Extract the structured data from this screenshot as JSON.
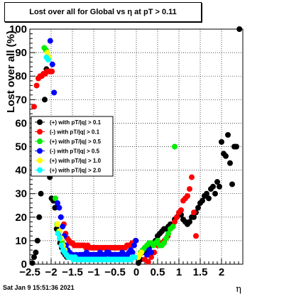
{
  "chart_data": {
    "type": "scatter",
    "title": "Lost over all for Global vs   η at pT > 0.11",
    "xlabel": "η",
    "ylabel": "Lost over all (%)",
    "xlim": [
      -2.5,
      2.5
    ],
    "ylim": [
      0,
      100
    ],
    "xticks": [
      -2.5,
      -2,
      -1.5,
      -1,
      -0.5,
      0,
      0.5,
      1,
      1.5,
      2
    ],
    "xtick_labels": [
      "−2.5",
      "−2",
      "−1.5",
      "−1",
      "−0.5",
      "0",
      "0.5",
      "1",
      "1.5",
      "2"
    ],
    "yticks": [
      0,
      10,
      20,
      30,
      40,
      50,
      60,
      70,
      80,
      90,
      100
    ],
    "grid": true,
    "legend_position": "middle-left",
    "footer": "Sat Jan  9 15:51:36 2021",
    "series": [
      {
        "name": "(+) with pT/|q| > 0.1",
        "color": "#000000",
        "points": [
          [
            -2.44,
            0.5
          ],
          [
            -2.4,
            3
          ],
          [
            -2.36,
            5
          ],
          [
            -2.32,
            10
          ],
          [
            -2.28,
            20
          ],
          [
            -2.24,
            30
          ],
          [
            -2.15,
            70
          ],
          [
            -2.11,
            83
          ],
          [
            -2.07,
            82
          ],
          [
            -2.03,
            37
          ],
          [
            -1.99,
            28
          ],
          [
            -1.95,
            27
          ],
          [
            -1.91,
            24
          ],
          [
            -1.87,
            15
          ],
          [
            -1.83,
            13
          ],
          [
            -1.79,
            9
          ],
          [
            -1.75,
            7
          ],
          [
            -1.71,
            5
          ],
          [
            -1.67,
            4
          ],
          [
            -1.63,
            3
          ],
          [
            0.05,
            0.5
          ],
          [
            0.1,
            2
          ],
          [
            0.15,
            5
          ],
          [
            0.2,
            7
          ],
          [
            0.25,
            6
          ],
          [
            0.3,
            7
          ],
          [
            0.35,
            8
          ],
          [
            0.4,
            9
          ],
          [
            0.45,
            10
          ],
          [
            0.5,
            12
          ],
          [
            0.55,
            13
          ],
          [
            0.6,
            14
          ],
          [
            0.65,
            15
          ],
          [
            0.7,
            15
          ],
          [
            0.75,
            16
          ],
          [
            0.8,
            17
          ],
          [
            0.85,
            17
          ],
          [
            0.9,
            19
          ],
          [
            0.95,
            20
          ],
          [
            1.0,
            21
          ],
          [
            1.05,
            21
          ],
          [
            1.1,
            19
          ],
          [
            1.15,
            18
          ],
          [
            1.2,
            17
          ],
          [
            1.25,
            18
          ],
          [
            1.3,
            20
          ],
          [
            1.35,
            20
          ],
          [
            1.4,
            22
          ],
          [
            1.45,
            24
          ],
          [
            1.5,
            26
          ],
          [
            1.55,
            27
          ],
          [
            1.6,
            29
          ],
          [
            1.65,
            30
          ],
          [
            1.7,
            28
          ],
          [
            1.75,
            32
          ],
          [
            1.8,
            33
          ],
          [
            1.85,
            30
          ],
          [
            1.9,
            35
          ],
          [
            1.95,
            33
          ],
          [
            2.0,
            52
          ],
          [
            2.05,
            47
          ],
          [
            2.1,
            46
          ],
          [
            2.15,
            55
          ],
          [
            2.2,
            43
          ],
          [
            2.25,
            34
          ],
          [
            2.3,
            50
          ],
          [
            2.35,
            50
          ],
          [
            2.42,
            100
          ]
        ]
      },
      {
        "name": "(-) with pT/|q| > 0.1",
        "color": "#ff0000",
        "points": [
          [
            -2.4,
            67
          ],
          [
            -2.34,
            76
          ],
          [
            -2.3,
            79
          ],
          [
            -2.26,
            80
          ],
          [
            -2.22,
            80
          ],
          [
            -2.18,
            81
          ],
          [
            -2.14,
            81
          ],
          [
            -2.1,
            82
          ],
          [
            -2.06,
            82
          ],
          [
            -2.02,
            82
          ],
          [
            -1.98,
            82
          ],
          [
            -1.7,
            17
          ],
          [
            -1.66,
            13
          ],
          [
            -1.62,
            11
          ],
          [
            -1.58,
            10
          ],
          [
            -1.54,
            9
          ],
          [
            -1.5,
            9
          ],
          [
            -1.46,
            8
          ],
          [
            -1.42,
            8
          ],
          [
            -1.38,
            8
          ],
          [
            -1.34,
            8
          ],
          [
            -1.3,
            8
          ],
          [
            -1.26,
            8
          ],
          [
            -1.22,
            8
          ],
          [
            -1.18,
            7
          ],
          [
            -1.14,
            8
          ],
          [
            -1.1,
            7
          ],
          [
            -1.06,
            7
          ],
          [
            -1.02,
            7
          ],
          [
            -0.98,
            7
          ],
          [
            -0.94,
            7
          ],
          [
            -0.9,
            7
          ],
          [
            -0.86,
            7
          ],
          [
            -0.82,
            7
          ],
          [
            -0.78,
            7
          ],
          [
            -0.74,
            7
          ],
          [
            -0.7,
            7
          ],
          [
            -0.66,
            7
          ],
          [
            -0.62,
            7
          ],
          [
            -0.58,
            7
          ],
          [
            -0.54,
            7
          ],
          [
            -0.5,
            7
          ],
          [
            -0.46,
            7
          ],
          [
            -0.42,
            7
          ],
          [
            -0.38,
            7
          ],
          [
            -0.34,
            7
          ],
          [
            -0.3,
            7
          ],
          [
            -0.26,
            7
          ],
          [
            -0.22,
            8
          ],
          [
            -0.18,
            8
          ],
          [
            -0.14,
            8
          ],
          [
            -0.1,
            9
          ],
          [
            -0.06,
            9
          ],
          [
            -0.02,
            10
          ],
          [
            0.2,
            2
          ],
          [
            0.28,
            1
          ],
          [
            0.35,
            3
          ],
          [
            0.42,
            5
          ],
          [
            0.5,
            8
          ],
          [
            0.58,
            9
          ],
          [
            0.66,
            10
          ],
          [
            0.74,
            12
          ],
          [
            0.8,
            15
          ],
          [
            0.86,
            16
          ],
          [
            0.9,
            18
          ],
          [
            0.95,
            20
          ],
          [
            1.0,
            22
          ],
          [
            1.05,
            23
          ],
          [
            1.1,
            27
          ],
          [
            1.15,
            28
          ],
          [
            1.2,
            29
          ],
          [
            1.25,
            32
          ],
          [
            1.3,
            37
          ],
          [
            1.35,
            22
          ],
          [
            1.4,
            12
          ]
        ]
      },
      {
        "name": "(+) with pT/|q| > 0.5",
        "color": "#00ee00",
        "points": [
          [
            -2.16,
            92
          ],
          [
            -2.12,
            91
          ],
          [
            -1.9,
            28
          ],
          [
            -1.86,
            17
          ],
          [
            -1.82,
            14
          ],
          [
            -1.78,
            11
          ],
          [
            -1.74,
            9
          ],
          [
            -1.7,
            7
          ],
          [
            -1.66,
            5
          ],
          [
            -1.62,
            4
          ],
          [
            -1.58,
            4
          ],
          [
            -1.54,
            3
          ],
          [
            -1.5,
            3
          ],
          [
            -1.46,
            3
          ],
          [
            -1.42,
            3
          ],
          [
            0.05,
            3
          ],
          [
            0.1,
            5
          ],
          [
            0.15,
            6
          ],
          [
            0.2,
            7
          ],
          [
            0.25,
            8
          ],
          [
            0.3,
            9
          ],
          [
            0.35,
            9
          ],
          [
            0.4,
            8
          ],
          [
            0.45,
            9
          ],
          [
            0.5,
            10
          ],
          [
            0.55,
            8
          ],
          [
            0.6,
            8
          ],
          [
            0.65,
            9
          ],
          [
            0.7,
            11
          ],
          [
            0.75,
            13
          ],
          [
            0.8,
            15
          ],
          [
            0.86,
            16
          ],
          [
            0.9,
            50
          ]
        ]
      },
      {
        "name": "(-) with pT/|q| > 0.5",
        "color": "#0000ff",
        "points": [
          [
            -2.02,
            95
          ],
          [
            -1.97,
            85
          ],
          [
            -1.93,
            73
          ],
          [
            -1.85,
            26
          ],
          [
            -1.81,
            24
          ],
          [
            -1.77,
            20
          ],
          [
            -1.73,
            16
          ],
          [
            -1.69,
            12
          ],
          [
            -1.65,
            8
          ],
          [
            -1.61,
            6
          ],
          [
            -1.57,
            5
          ],
          [
            -1.53,
            4
          ],
          [
            -1.49,
            4
          ],
          [
            -1.45,
            3
          ],
          [
            -1.41,
            4
          ],
          [
            -1.37,
            3
          ],
          [
            -1.33,
            4
          ],
          [
            -1.29,
            4
          ],
          [
            -1.25,
            4
          ],
          [
            -1.21,
            4
          ],
          [
            -1.17,
            5
          ],
          [
            -1.13,
            4
          ],
          [
            -1.09,
            4
          ],
          [
            -1.05,
            4
          ],
          [
            -1.01,
            4
          ],
          [
            -0.97,
            4
          ],
          [
            -0.93,
            4
          ],
          [
            -0.89,
            4
          ],
          [
            -0.85,
            5
          ],
          [
            -0.81,
            4
          ],
          [
            -0.77,
            4
          ],
          [
            -0.73,
            4
          ],
          [
            -0.69,
            5
          ],
          [
            -0.65,
            5
          ],
          [
            -0.61,
            4
          ],
          [
            -0.57,
            4
          ],
          [
            -0.53,
            4
          ],
          [
            -0.49,
            4
          ],
          [
            -0.45,
            4
          ],
          [
            -0.41,
            4
          ],
          [
            -0.37,
            4
          ],
          [
            -0.33,
            5
          ],
          [
            -0.29,
            4
          ],
          [
            -0.25,
            4
          ],
          [
            -0.21,
            4
          ],
          [
            -0.17,
            5
          ],
          [
            -0.13,
            6
          ],
          [
            -0.09,
            5
          ],
          [
            -0.05,
            8
          ],
          [
            -0.01,
            10
          ],
          [
            0.25,
            4
          ],
          [
            0.3,
            6
          ],
          [
            0.35,
            5
          ]
        ]
      },
      {
        "name": "(+) with pT/|q| > 1.0",
        "color": "#ffff00",
        "points": [
          [
            -2.09,
            90
          ],
          [
            -2.05,
            88
          ],
          [
            -1.85,
            17
          ],
          [
            -1.8,
            14
          ],
          [
            -1.76,
            11
          ],
          [
            -1.72,
            8
          ],
          [
            -1.68,
            6
          ],
          [
            -1.64,
            4
          ],
          [
            -1.6,
            3
          ],
          [
            0.05,
            3
          ],
          [
            0.08,
            4
          ],
          [
            0.12,
            5
          ]
        ]
      },
      {
        "name": "(+) with pT/|q| > 2.0",
        "color": "#00ffff",
        "points": [
          [
            -2.11,
            88
          ],
          [
            -2.07,
            87
          ],
          [
            -1.84,
            13
          ],
          [
            -1.8,
            11
          ],
          [
            -1.76,
            8
          ],
          [
            -1.72,
            6
          ],
          [
            -1.68,
            5
          ],
          [
            -1.64,
            4
          ],
          [
            -1.6,
            3
          ],
          [
            -1.56,
            3
          ],
          [
            -1.52,
            3
          ],
          [
            -1.48,
            2
          ],
          [
            -1.44,
            3
          ],
          [
            -1.4,
            2
          ],
          [
            -1.36,
            2
          ],
          [
            -1.32,
            2
          ],
          [
            -1.28,
            2
          ],
          [
            -1.24,
            2
          ],
          [
            -1.2,
            2
          ],
          [
            -1.16,
            2
          ],
          [
            -1.12,
            2
          ],
          [
            -1.08,
            2
          ],
          [
            -1.04,
            2
          ],
          [
            -1.0,
            2
          ],
          [
            -0.96,
            2
          ],
          [
            -0.92,
            2
          ],
          [
            -0.88,
            2
          ],
          [
            -0.84,
            2
          ],
          [
            -0.8,
            2
          ],
          [
            -0.76,
            2
          ],
          [
            -0.72,
            2
          ],
          [
            -0.68,
            2
          ],
          [
            -0.64,
            2
          ],
          [
            -0.6,
            2
          ],
          [
            -0.56,
            2
          ],
          [
            -0.52,
            2
          ],
          [
            -0.48,
            2
          ],
          [
            -0.44,
            2
          ],
          [
            -0.4,
            2
          ],
          [
            -0.36,
            2
          ],
          [
            -0.32,
            2
          ],
          [
            -0.28,
            2
          ],
          [
            -0.24,
            2
          ],
          [
            -0.2,
            2
          ],
          [
            -0.16,
            2
          ],
          [
            -0.12,
            2
          ],
          [
            -0.08,
            3
          ],
          [
            -0.04,
            3
          ]
        ]
      }
    ]
  }
}
